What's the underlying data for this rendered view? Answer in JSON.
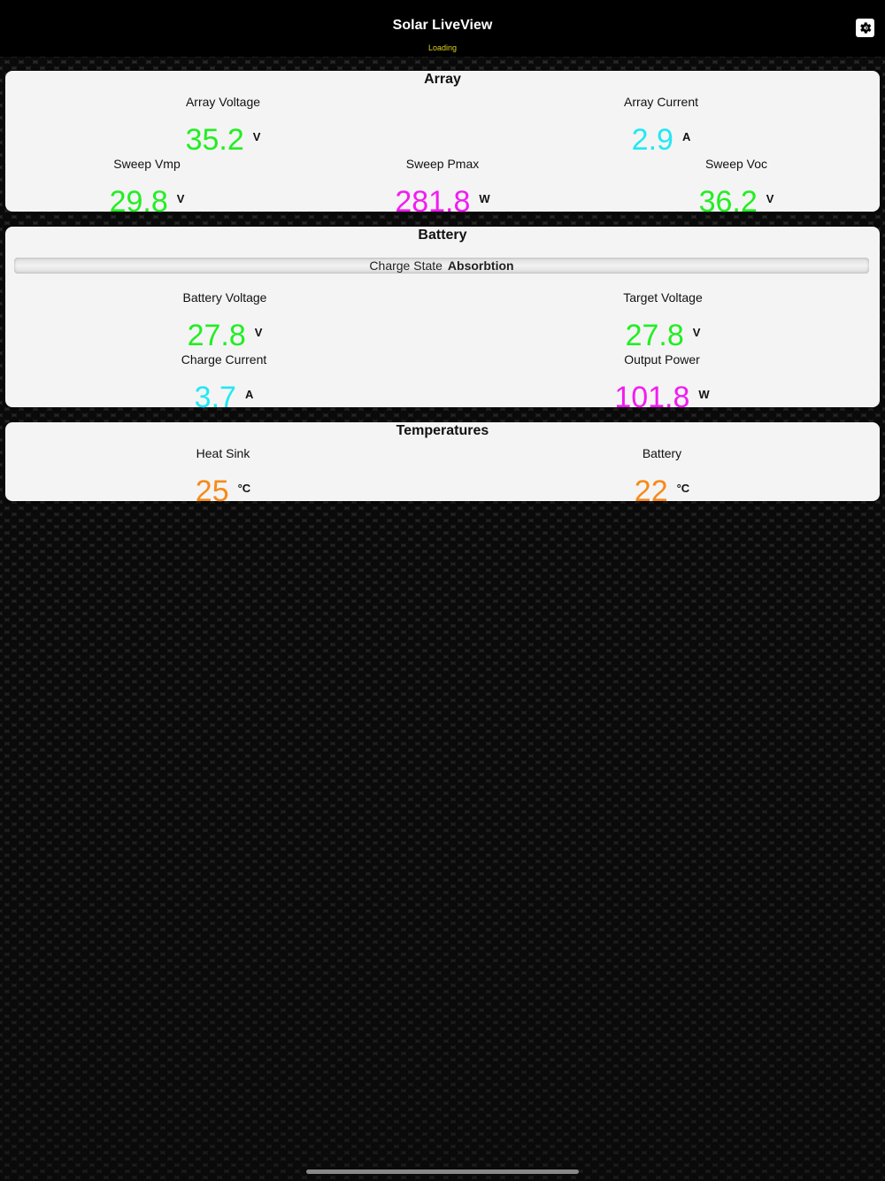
{
  "header": {
    "title": "Solar LiveView",
    "status": "Loading",
    "settings_icon": "gear-icon"
  },
  "array": {
    "title": "Array",
    "array_voltage": {
      "label": "Array Voltage",
      "value": "35.2",
      "unit": "V"
    },
    "array_current": {
      "label": "Array Current",
      "value": "2.9",
      "unit": "A"
    },
    "sweep_vmp": {
      "label": "Sweep Vmp",
      "value": "29.8",
      "unit": "V"
    },
    "sweep_pmax": {
      "label": "Sweep Pmax",
      "value": "281.8",
      "unit": "W"
    },
    "sweep_voc": {
      "label": "Sweep Voc",
      "value": "36.2",
      "unit": "V"
    }
  },
  "battery": {
    "title": "Battery",
    "charge_state_label": "Charge State",
    "charge_state_value": "Absorbtion",
    "battery_voltage": {
      "label": "Battery Voltage",
      "value": "27.8",
      "unit": "V"
    },
    "target_voltage": {
      "label": "Target Voltage",
      "value": "27.8",
      "unit": "V"
    },
    "charge_current": {
      "label": "Charge Current",
      "value": "3.7",
      "unit": "A"
    },
    "output_power": {
      "label": "Output Power",
      "value": "101.8",
      "unit": "W"
    }
  },
  "temperatures": {
    "title": "Temperatures",
    "heat_sink": {
      "label": "Heat Sink",
      "value": "25",
      "unit": "°C"
    },
    "battery": {
      "label": "Battery",
      "value": "22",
      "unit": "°C"
    }
  },
  "colors": {
    "voltage": "#22ee22",
    "current": "#22e8f4",
    "power": "#f21cf2",
    "temperature": "#f78a18",
    "status": "#e0d21c"
  }
}
